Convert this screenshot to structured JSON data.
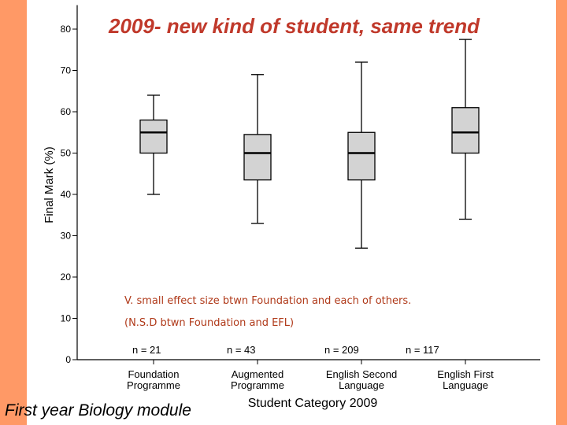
{
  "slide": {
    "title": "2009- new kind of student, same trend",
    "note_line1": "V. small effect size btwn Foundation and each of others.",
    "note_line2": "(N.S.D btwn Foundation and EFL)",
    "footer": "First year Biology module",
    "colors": {
      "background": "#FF9966",
      "title": "#C0392B",
      "note": "#B03A1A",
      "box_fill": "#D3D3D3"
    }
  },
  "chart_data": {
    "type": "boxplot",
    "ylabel": "Final Mark (%)",
    "xlabel": "Student Category 2009",
    "ylim": [
      0,
      82
    ],
    "yticks": [
      0,
      10,
      20,
      30,
      40,
      50,
      60,
      70,
      80
    ],
    "grid": false,
    "categories": [
      [
        "Foundation",
        "Programme"
      ],
      [
        "Augmented",
        "Programme"
      ],
      [
        "English Second",
        "Language"
      ],
      [
        "English First",
        "Language"
      ]
    ],
    "n_labels": [
      "n = 21",
      "n = 43",
      "n = 209",
      "n = 117"
    ],
    "boxes": [
      {
        "min": 40,
        "q1": 50,
        "median": 55,
        "q3": 58,
        "max": 64
      },
      {
        "min": 33,
        "q1": 43.5,
        "median": 50,
        "q3": 54.5,
        "max": 69
      },
      {
        "min": 27,
        "q1": 43.5,
        "median": 50,
        "q3": 55,
        "max": 72
      },
      {
        "min": 34,
        "q1": 50,
        "median": 55,
        "q3": 61,
        "max": 77.5
      }
    ]
  }
}
